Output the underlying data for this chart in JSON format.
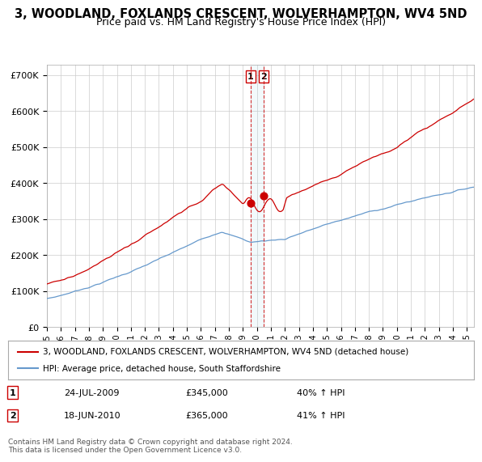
{
  "title": "3, WOODLAND, FOXLANDS CRESCENT, WOLVERHAMPTON, WV4 5ND",
  "subtitle": "Price paid vs. HM Land Registry's House Price Index (HPI)",
  "legend_line1": "3, WOODLAND, FOXLANDS CRESCENT, WOLVERHAMPTON, WV4 5ND (detached house)",
  "legend_line2": "HPI: Average price, detached house, South Staffordshire",
  "annotation1_label": "1",
  "annotation1_date": "24-JUL-2009",
  "annotation1_price": "£345,000",
  "annotation1_hpi": "40% ↑ HPI",
  "annotation2_label": "2",
  "annotation2_date": "18-JUN-2010",
  "annotation2_price": "£365,000",
  "annotation2_hpi": "41% ↑ HPI",
  "footer": "Contains HM Land Registry data © Crown copyright and database right 2024.\nThis data is licensed under the Open Government Licence v3.0.",
  "red_line_color": "#cc0000",
  "blue_line_color": "#6699cc",
  "point1_x_year": 2009.56,
  "point1_y": 345000,
  "point2_x_year": 2010.46,
  "point2_y": 365000,
  "vline1_x": 2009.56,
  "vline2_x": 2010.46,
  "ylim": [
    0,
    730000
  ],
  "xlim_start": 1995,
  "xlim_end": 2025.5,
  "background_color": "#ffffff",
  "grid_color": "#cccccc",
  "title_fontsize": 10.5,
  "subtitle_fontsize": 9
}
